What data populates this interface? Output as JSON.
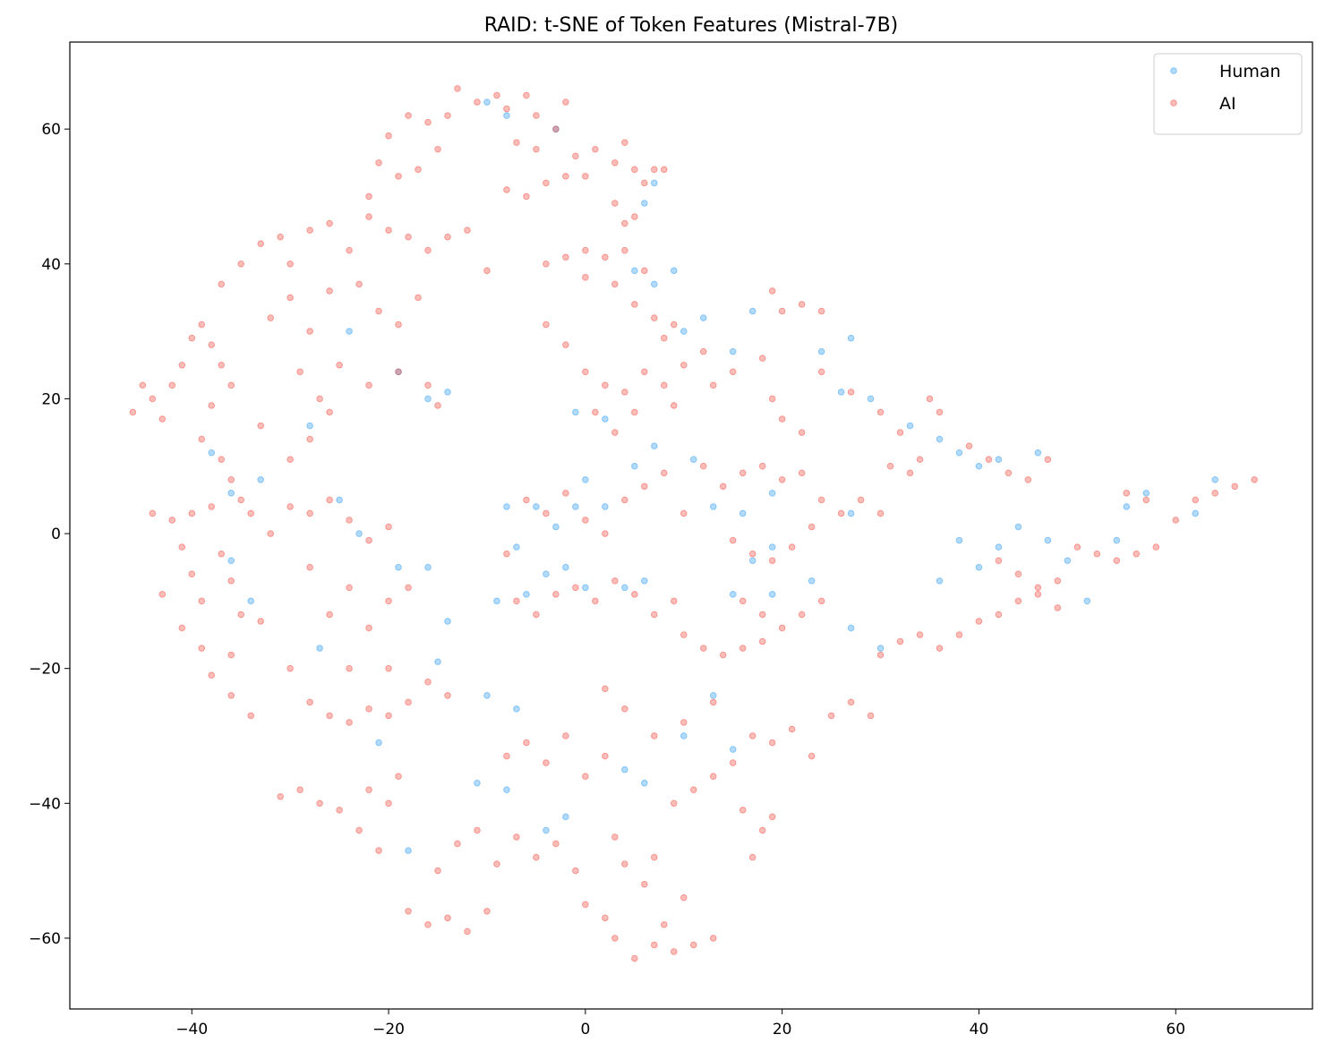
{
  "chart_data": {
    "type": "scatter",
    "title": "RAID: t-SNE of Token Features (Mistral-7B)",
    "xlim": [
      -52.4,
      73.9
    ],
    "ylim": [
      -70.5,
      72.9
    ],
    "xticks": [
      {
        "value": -40,
        "label": "−40"
      },
      {
        "value": -20,
        "label": "−20"
      },
      0,
      20,
      40,
      60
    ],
    "yticks": [
      {
        "value": -60,
        "label": "−60"
      },
      {
        "value": -40,
        "label": "−40"
      },
      {
        "value": -20,
        "label": "−20"
      },
      0,
      20,
      40,
      60
    ],
    "legend": "upper right",
    "series": [
      {
        "name": "Human",
        "color": "#2196f3",
        "x": [
          -10,
          -8,
          -3,
          6,
          7,
          5,
          7,
          9,
          12,
          17,
          10,
          15,
          24,
          27,
          26,
          29,
          33,
          36,
          38,
          40,
          42,
          46,
          -1,
          2,
          5,
          7,
          11,
          13,
          16,
          19,
          27,
          -8,
          -5,
          -3,
          -1,
          0,
          2,
          -7,
          -4,
          -2,
          -9,
          -6,
          0,
          4,
          6,
          17,
          19,
          15,
          19,
          23,
          27,
          30,
          36,
          38,
          40,
          42,
          44,
          47,
          49,
          51,
          54,
          55,
          57,
          62,
          64,
          -36,
          -34,
          -38,
          -36,
          -33,
          -27,
          -21,
          -18,
          -15,
          -10,
          -7,
          -11,
          -8,
          -4,
          -2,
          4,
          6,
          10,
          13,
          15,
          -14,
          -16,
          -19,
          -24,
          -28,
          -25,
          -23,
          -19,
          -16,
          -14
        ],
        "values": [
          64,
          62,
          60,
          49,
          52,
          39,
          37,
          39,
          32,
          33,
          30,
          27,
          27,
          29,
          21,
          20,
          16,
          14,
          12,
          10,
          11,
          12,
          18,
          17,
          10,
          13,
          11,
          4,
          3,
          6,
          3,
          4,
          4,
          1,
          4,
          8,
          4,
          -2,
          -6,
          -5,
          -10,
          -9,
          -8,
          -8,
          -7,
          -4,
          -2,
          -9,
          -9,
          -7,
          -14,
          -17,
          -7,
          -1,
          -5,
          -2,
          1,
          -1,
          -4,
          -10,
          -1,
          4,
          6,
          3,
          8,
          -4,
          -10,
          12,
          6,
          8,
          -17,
          -31,
          -47,
          -19,
          -24,
          -26,
          -37,
          -38,
          -44,
          -42,
          -35,
          -37,
          -30,
          -24,
          -32,
          21,
          20,
          24,
          30,
          16,
          5,
          0,
          -5,
          -5,
          -13
        ]
      },
      {
        "name": "AI",
        "color": "#f44336",
        "x": [
          -46,
          -45,
          -44,
          -43,
          -42,
          -41,
          -40,
          -39,
          -38,
          -37,
          -36,
          -38,
          -39,
          -37,
          -36,
          -35,
          -38,
          -40,
          -42,
          -41,
          -40,
          -39,
          -41,
          -39,
          -38,
          -36,
          -34,
          -36,
          -35,
          -36,
          -33,
          -37,
          -34,
          -33,
          -32,
          -43,
          -44,
          -37,
          -35,
          -33,
          -31,
          -30,
          -32,
          -30,
          -28,
          -26,
          -28,
          -26,
          -24,
          -22,
          -20,
          -18,
          -16,
          -14,
          -12,
          -10,
          -23,
          -21,
          -19,
          -17,
          -22,
          -19,
          -16,
          -15,
          -25,
          -27,
          -29,
          -26,
          -30,
          -28,
          -22,
          -21,
          -20,
          -18,
          -16,
          -15,
          -14,
          -13,
          -11,
          -9,
          -8,
          -6,
          -5,
          -3,
          -2,
          -19,
          -17,
          -7,
          -5,
          -8,
          -6,
          -4,
          -2,
          -1,
          0,
          1,
          3,
          4,
          5,
          6,
          3,
          5,
          7,
          8,
          4,
          -4,
          -2,
          0,
          2,
          4,
          6,
          0,
          3,
          5,
          7,
          9,
          8,
          -4,
          -2,
          0,
          2,
          4,
          6,
          8,
          10,
          12,
          1,
          3,
          5,
          9,
          13,
          15,
          19,
          20,
          22,
          24,
          18,
          19,
          20,
          22,
          24,
          27,
          30,
          32,
          34,
          36,
          35,
          39,
          41,
          43,
          45,
          47,
          31,
          33,
          -6,
          -4,
          -2,
          0,
          2,
          -8,
          -7,
          -5,
          -3,
          -1,
          1,
          3,
          5,
          7,
          9,
          8,
          6,
          4,
          10,
          12,
          14,
          16,
          18,
          20,
          22,
          24,
          26,
          28,
          30,
          15,
          17,
          19,
          21,
          23,
          16,
          18,
          20,
          22,
          24,
          10,
          12,
          14,
          16,
          18,
          30,
          32,
          34,
          36,
          38,
          40,
          42,
          44,
          46,
          48,
          42,
          44,
          46,
          48,
          50,
          52,
          54,
          56,
          58,
          60,
          62,
          64,
          66,
          68,
          55,
          57,
          -30,
          -28,
          -26,
          -24,
          -22,
          -20,
          -18,
          -16,
          -14,
          -28,
          -26,
          -24,
          -22,
          -20,
          -18,
          -26,
          -24,
          -22,
          -20,
          -28,
          -30,
          -24,
          -20,
          -31,
          -29,
          -27,
          -25,
          -23,
          -21,
          -20,
          -19,
          -22,
          -18,
          -16,
          -14,
          -12,
          -10,
          -15,
          -13,
          -11,
          -9,
          -7,
          -5,
          -3,
          -1,
          -8,
          -6,
          -4,
          -2,
          0,
          2,
          0,
          2,
          3,
          5,
          7,
          9,
          11,
          13,
          8,
          10,
          6,
          4,
          7,
          3,
          9,
          11,
          13,
          15,
          17,
          19,
          21,
          23,
          25,
          27,
          29,
          16,
          18,
          19,
          17,
          13,
          10,
          7,
          4,
          2
        ],
        "values": [
          18,
          22,
          20,
          17,
          22,
          25,
          29,
          31,
          28,
          25,
          22,
          19,
          14,
          11,
          8,
          5,
          4,
          3,
          2,
          -2,
          -6,
          -10,
          -14,
          -17,
          -21,
          -24,
          -27,
          -18,
          -12,
          -7,
          -13,
          -3,
          3,
          16,
          0,
          -9,
          3,
          37,
          40,
          43,
          44,
          40,
          32,
          35,
          30,
          36,
          45,
          46,
          42,
          47,
          45,
          44,
          42,
          44,
          45,
          39,
          37,
          33,
          31,
          35,
          22,
          24,
          22,
          19,
          25,
          20,
          24,
          18,
          11,
          14,
          50,
          55,
          59,
          62,
          61,
          57,
          62,
          66,
          64,
          65,
          63,
          65,
          62,
          60,
          64,
          53,
          54,
          58,
          57,
          51,
          50,
          52,
          53,
          56,
          53,
          57,
          55,
          58,
          54,
          52,
          49,
          47,
          54,
          54,
          46,
          40,
          41,
          42,
          41,
          42,
          39,
          38,
          37,
          34,
          32,
          31,
          29,
          31,
          28,
          24,
          22,
          21,
          24,
          22,
          25,
          27,
          18,
          15,
          18,
          19,
          22,
          24,
          36,
          33,
          34,
          33,
          26,
          20,
          17,
          15,
          24,
          21,
          18,
          15,
          11,
          18,
          20,
          13,
          11,
          9,
          8,
          11,
          10,
          9,
          5,
          3,
          6,
          2,
          0,
          -3,
          -10,
          -12,
          -9,
          -8,
          -10,
          -7,
          -9,
          -12,
          -10,
          9,
          7,
          5,
          3,
          10,
          7,
          9,
          10,
          8,
          9,
          5,
          3,
          5,
          3,
          -1,
          -3,
          -4,
          -2,
          1,
          -10,
          -12,
          -14,
          -12,
          -10,
          -15,
          -17,
          -18,
          -17,
          -16,
          -18,
          -16,
          -15,
          -17,
          -15,
          -13,
          -12,
          -10,
          -8,
          -7,
          -4,
          -6,
          -9,
          -11,
          -2,
          -3,
          -4,
          -3,
          -2,
          2,
          5,
          6,
          7,
          8,
          6,
          5,
          -20,
          -25,
          -27,
          -28,
          -26,
          -27,
          -25,
          -22,
          -24,
          -5,
          -12,
          -8,
          -14,
          -10,
          -8,
          5,
          2,
          -1,
          1,
          3,
          4,
          -20,
          -20,
          -39,
          -38,
          -40,
          -41,
          -44,
          -47,
          -40,
          -36,
          -38,
          -56,
          -58,
          -57,
          -59,
          -56,
          -50,
          -46,
          -44,
          -49,
          -45,
          -48,
          -46,
          -50,
          -33,
          -31,
          -34,
          -30,
          -36,
          -33,
          -55,
          -57,
          -60,
          -63,
          -61,
          -62,
          -61,
          -60,
          -58,
          -54,
          -52,
          -49,
          -48,
          -45,
          -40,
          -38,
          -36,
          -34,
          -30,
          -31,
          -29,
          -33,
          -27,
          -25,
          -27,
          -41,
          -44,
          -42,
          -48,
          -25,
          -28,
          -30,
          -26,
          -23
        ]
      }
    ]
  }
}
